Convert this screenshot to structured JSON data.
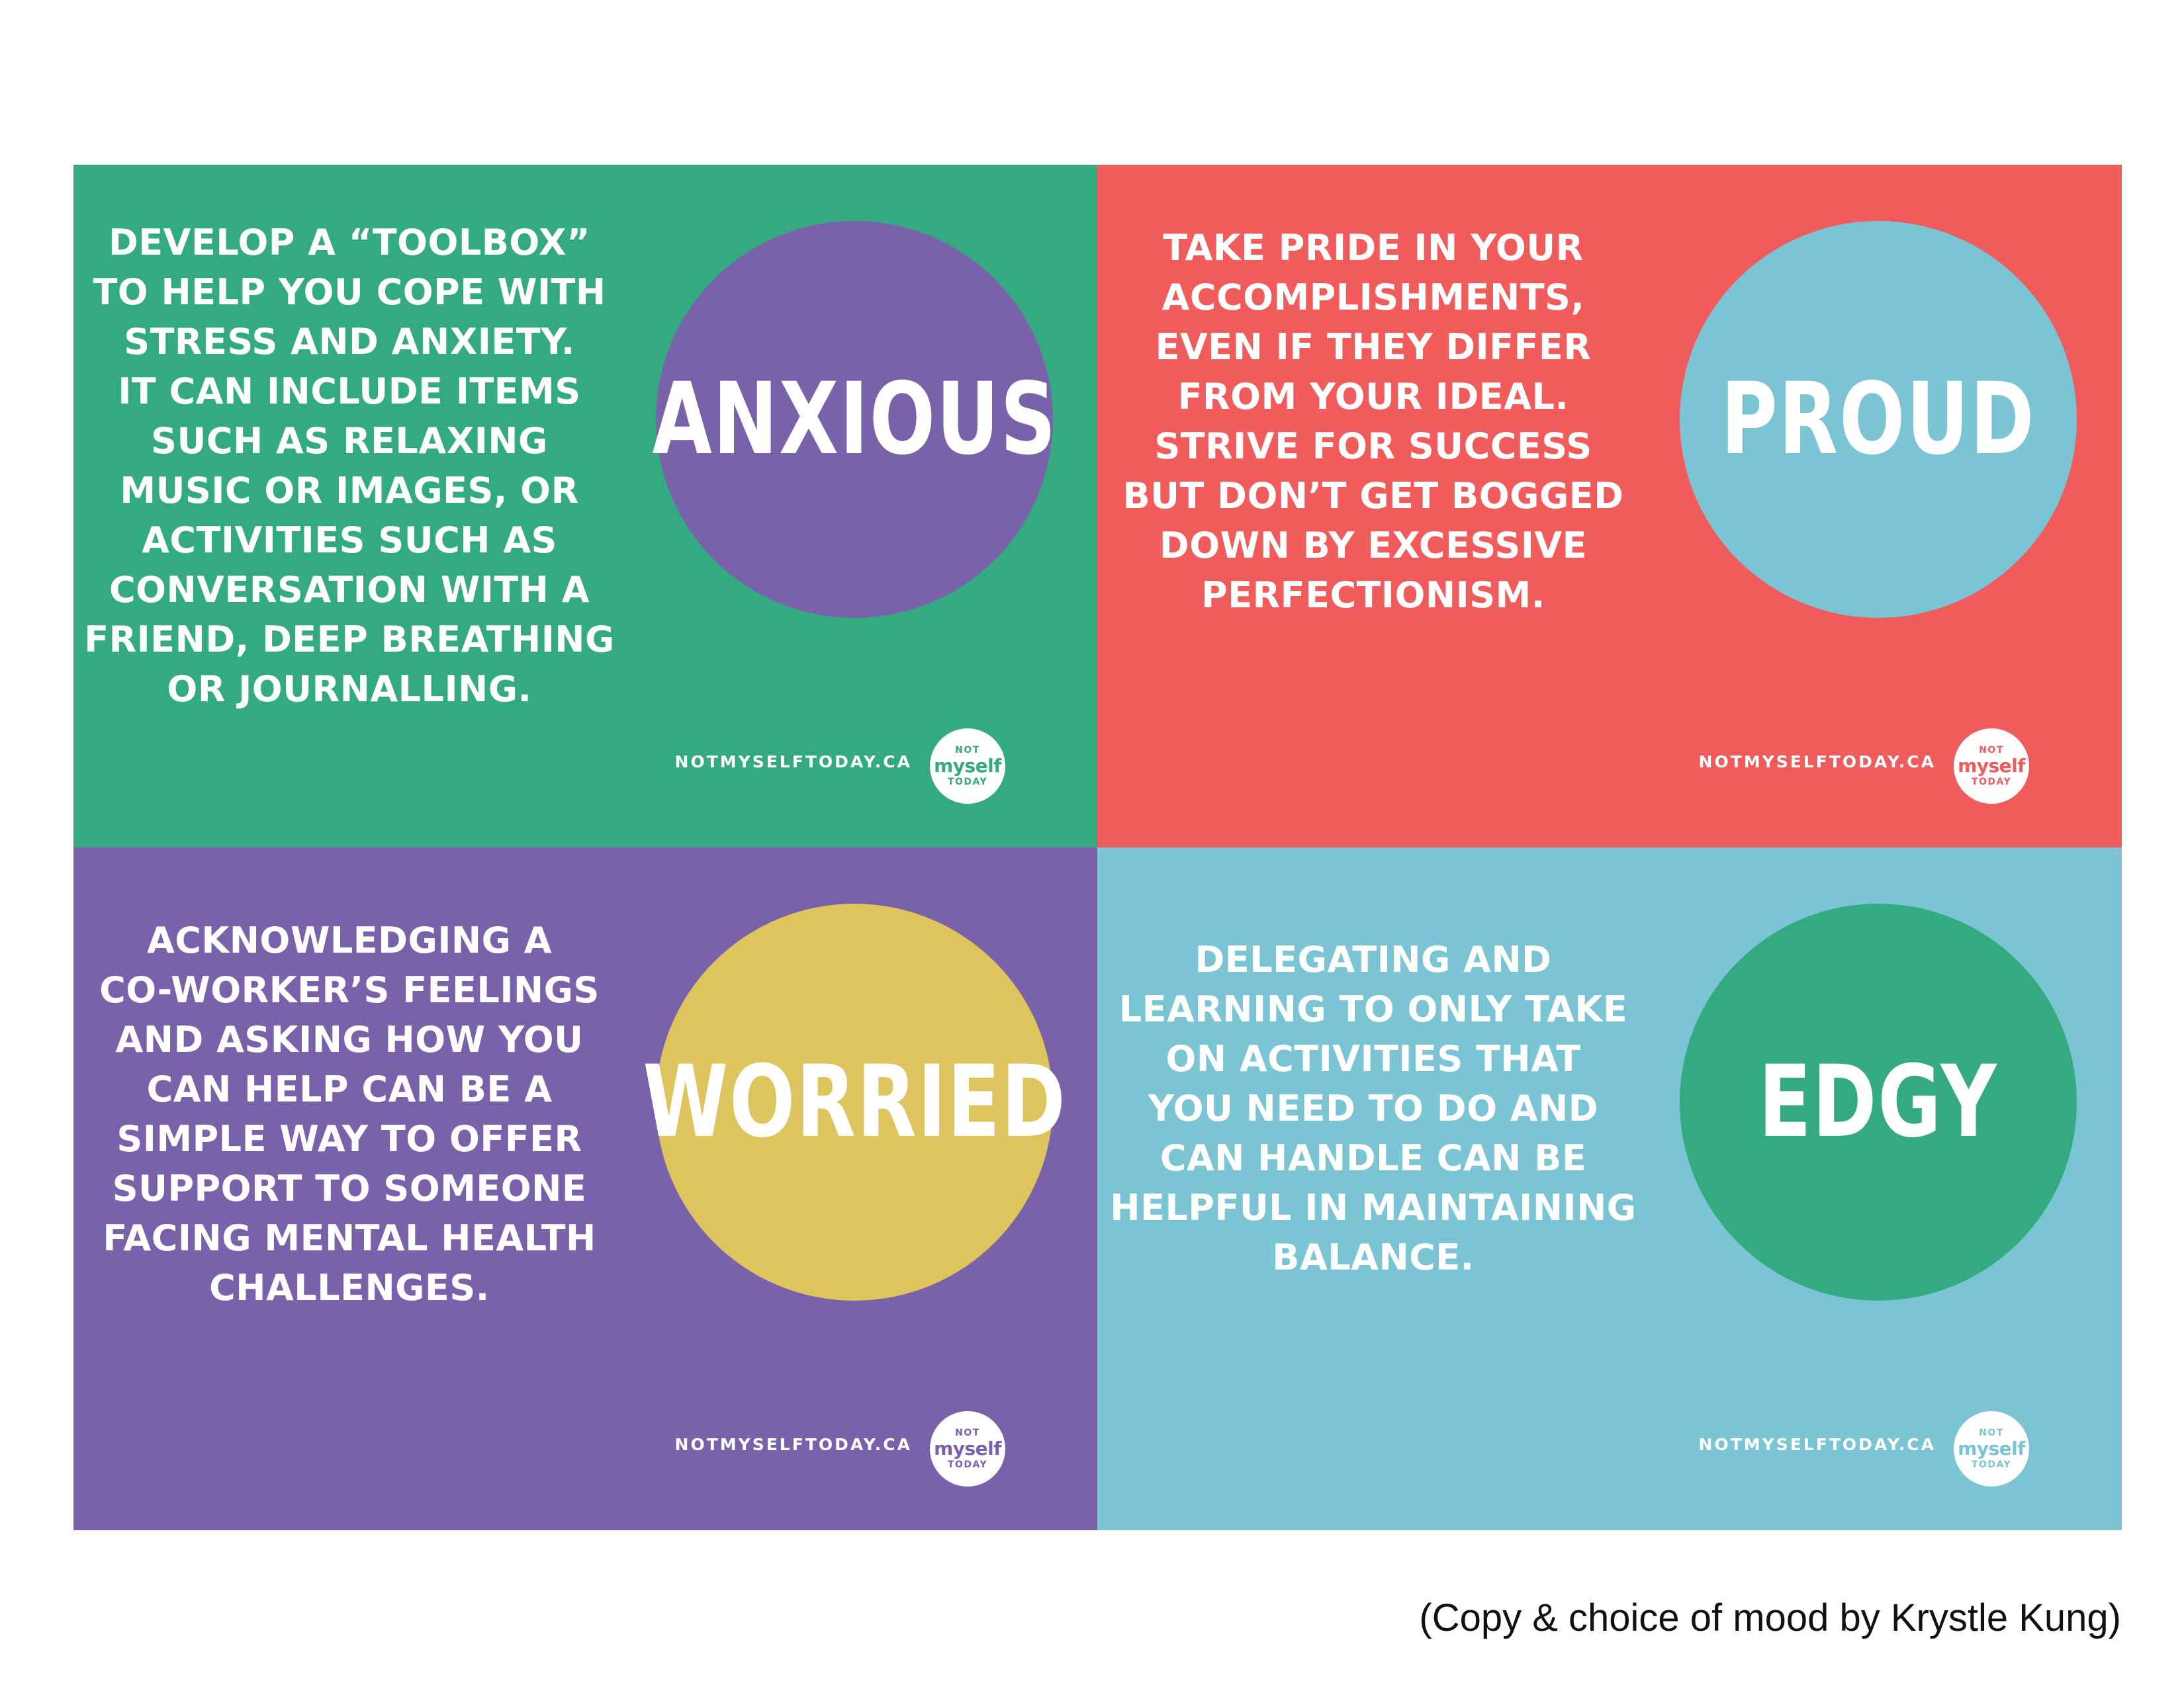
{
  "colors": {
    "green": "#33AA80",
    "red": "#F05B5B",
    "purple": "#7A62AA",
    "light_blue": "#7AC4D3",
    "yellow": "#DDC45C"
  },
  "panels": [
    {
      "mood": "ANXIOUS",
      "message": "DEVELOP A “TOOLBOX”\nTO HELP YOU COPE WITH\nSTRESS AND ANXIETY.\nIT CAN INCLUDE ITEMS\nSUCH AS RELAXING\nMUSIC OR IMAGES, OR\nACTIVITIES SUCH AS\nCONVERSATION WITH A\nFRIEND, DEEP BREATHING\nOR JOURNALLING.",
      "site": "NOTMYSELFTODAY.CA",
      "background": "#33AA80",
      "circle": "#7A62AA"
    },
    {
      "mood": "PROUD",
      "message": "TAKE PRIDE IN YOUR\nACCOMPLISHMENTS,\nEVEN IF THEY DIFFER\nFROM YOUR IDEAL.\nSTRIVE FOR SUCCESS\nBUT DON’T GET BOGGED\nDOWN BY EXCESSIVE\nPERFECTIONISM.",
      "site": "NOTMYSELFTODAY.CA",
      "background": "#F05B5B",
      "circle": "#7AC4D3"
    },
    {
      "mood": "WORRIED",
      "message": "ACKNOWLEDGING A\nCO-WORKER’S FEELINGS\nAND ASKING HOW YOU\nCAN HELP CAN BE A\nSIMPLE WAY TO OFFER\nSUPPORT TO SOMEONE\nFACING MENTAL HEALTH\nCHALLENGES.",
      "site": "NOTMYSELFTODAY.CA",
      "background": "#7A62AA",
      "circle": "#DDC45C"
    },
    {
      "mood": "EDGY",
      "message": "DELEGATING AND\nLEARNING TO ONLY TAKE\nON ACTIVITIES THAT\nYOU NEED TO DO AND\nCAN HANDLE CAN BE\nHELPFUL IN MAINTAINING\nBALANCE.",
      "site": "NOTMYSELFTODAY.CA",
      "background": "#7AC4D3",
      "circle": "#33AA80"
    }
  ],
  "logo": {
    "line1": "NOT",
    "line2": "myself",
    "line3": "TODAY"
  },
  "caption": "(Copy & choice of mood by Krystle Kung)"
}
